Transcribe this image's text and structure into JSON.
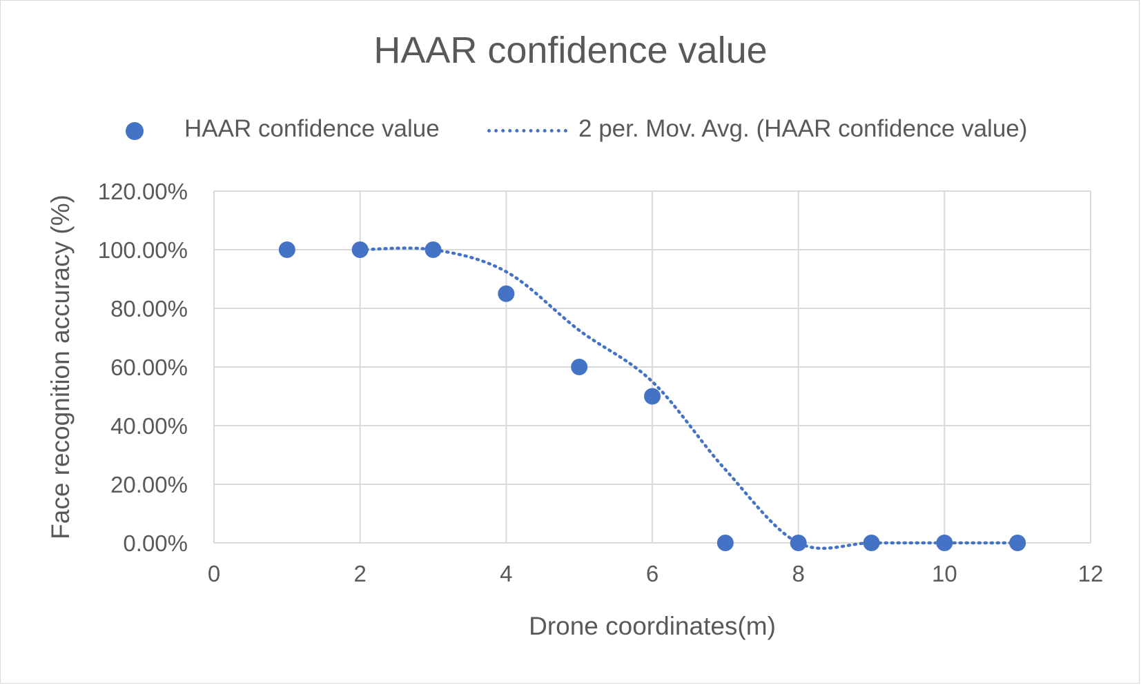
{
  "chart_data": {
    "type": "scatter",
    "title": "HAAR confidence value",
    "xlabel": "Drone coordinates(m)",
    "ylabel": "Face recognition accuracy (%)",
    "xlim": [
      0,
      12
    ],
    "ylim": [
      0,
      1.2
    ],
    "x_ticks": [
      "0",
      "2",
      "4",
      "6",
      "8",
      "10",
      "12"
    ],
    "y_ticks": [
      "0.00%",
      "20.00%",
      "40.00%",
      "60.00%",
      "80.00%",
      "100.00%",
      "120.00%"
    ],
    "grid": true,
    "legend_position": "top",
    "series": [
      {
        "name": "HAAR confidence value",
        "kind": "scatter",
        "x": [
          1,
          2,
          3,
          4,
          5,
          6,
          7,
          8,
          9,
          10,
          11
        ],
        "y": [
          1.0,
          1.0,
          1.0,
          0.85,
          0.6,
          0.5,
          0.0,
          0.0,
          0.0,
          0.0,
          0.0
        ]
      },
      {
        "name": "2 per. Mov. Avg. (HAAR confidence value)",
        "kind": "trendline-dotted",
        "x": [
          2,
          3,
          4,
          5,
          6,
          7,
          8,
          9,
          10,
          11
        ],
        "y": [
          1.0,
          1.0,
          0.925,
          0.725,
          0.55,
          0.25,
          0.0,
          0.0,
          0.0,
          0.0
        ]
      }
    ],
    "colors": {
      "series": "#4472c4",
      "grid": "#d9d9d9",
      "text": "#595959"
    }
  }
}
